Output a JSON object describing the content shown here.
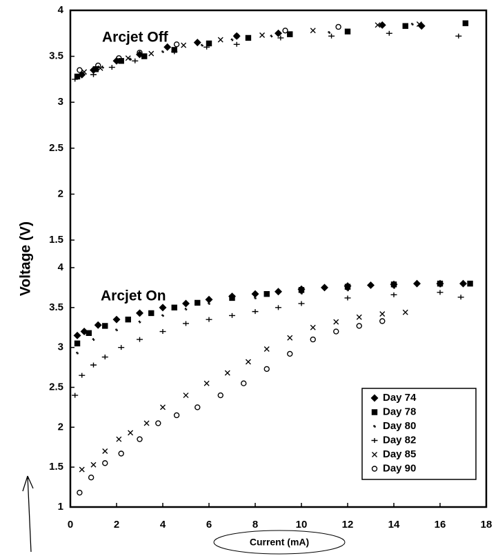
{
  "chart_data": [
    {
      "type": "scatter",
      "ylabel": "Voltage (V)",
      "annotation": "Arcjet Off",
      "xlim": [
        0,
        18
      ],
      "ylim": [
        1.2,
        4
      ],
      "yticks": [
        1.5,
        2,
        2.5,
        3,
        3.5,
        4
      ],
      "series": [
        {
          "name": "Day 74",
          "marker": "diamond",
          "color": "#000000",
          "x": [
            0.5,
            1,
            2,
            3,
            4.2,
            5.5,
            7.2,
            9,
            13.5,
            15.2
          ],
          "values": [
            3.3,
            3.35,
            3.45,
            3.52,
            3.6,
            3.65,
            3.72,
            3.75,
            3.84,
            3.83
          ]
        },
        {
          "name": "Day 78",
          "marker": "square",
          "color": "#000000",
          "x": [
            0.3,
            1.1,
            2.2,
            3.2,
            4.5,
            6,
            7.7,
            9.5,
            12,
            14.5,
            17.1
          ],
          "values": [
            3.28,
            3.36,
            3.45,
            3.5,
            3.57,
            3.64,
            3.7,
            3.74,
            3.77,
            3.83,
            3.86
          ]
        },
        {
          "name": "Day 80",
          "marker": "star",
          "color": "#000000",
          "x": [
            0.4,
            1.4,
            2.6,
            4,
            5.7,
            7,
            8.7,
            11.2,
            14.8
          ],
          "values": [
            3.3,
            3.38,
            3.47,
            3.55,
            3.62,
            3.68,
            3.72,
            3.76,
            3.85
          ]
        },
        {
          "name": "Day 82",
          "marker": "plus",
          "color": "#000000",
          "x": [
            0.2,
            1,
            1.8,
            2.8,
            4.5,
            5.9,
            7.2,
            9.1,
            11.3,
            13.8,
            16.8
          ],
          "values": [
            3.25,
            3.3,
            3.38,
            3.45,
            3.55,
            3.6,
            3.63,
            3.7,
            3.72,
            3.75,
            3.72
          ]
        },
        {
          "name": "Day 85",
          "marker": "x",
          "color": "#000000",
          "x": [
            0.6,
            1.3,
            2.5,
            3.5,
            4.9,
            6.5,
            8.3,
            10.5,
            13.3,
            15.1
          ],
          "values": [
            3.33,
            3.37,
            3.48,
            3.53,
            3.62,
            3.68,
            3.73,
            3.78,
            3.84,
            3.85
          ]
        },
        {
          "name": "Day 90",
          "marker": "circle",
          "color": "#000000",
          "x": [
            0.4,
            1.2,
            2.1,
            3,
            4.6,
            7.2,
            9.3,
            11.6
          ],
          "values": [
            3.35,
            3.4,
            3.48,
            3.54,
            3.63,
            3.72,
            3.78,
            3.82
          ]
        }
      ]
    },
    {
      "type": "scatter",
      "xlabel": "Current (mA)",
      "annotation": "Arcjet On",
      "legend": "lower right",
      "xlim": [
        0,
        18
      ],
      "xticks": [
        0,
        2,
        4,
        6,
        8,
        10,
        12,
        14,
        16,
        18
      ],
      "ylim": [
        1,
        4
      ],
      "yticks": [
        1,
        1.5,
        2,
        2.5,
        3,
        3.5,
        4
      ],
      "series": [
        {
          "name": "Day 74",
          "marker": "diamond",
          "color": "#000000",
          "x": [
            0.3,
            0.6,
            1.2,
            2,
            3,
            4,
            5,
            6,
            7,
            8,
            9,
            10,
            11,
            12,
            13,
            14,
            15,
            16,
            17
          ],
          "values": [
            3.15,
            3.2,
            3.28,
            3.35,
            3.43,
            3.5,
            3.55,
            3.6,
            3.64,
            3.67,
            3.7,
            3.73,
            3.75,
            3.77,
            3.78,
            3.79,
            3.8,
            3.8,
            3.8
          ]
        },
        {
          "name": "Day 78",
          "marker": "square",
          "color": "#000000",
          "x": [
            0.3,
            0.8,
            1.5,
            2.5,
            3.5,
            4.5,
            5.5,
            7,
            8.5,
            10,
            12,
            14,
            16,
            17.3
          ],
          "values": [
            3.05,
            3.18,
            3.27,
            3.35,
            3.43,
            3.5,
            3.56,
            3.62,
            3.67,
            3.72,
            3.76,
            3.79,
            3.8,
            3.8
          ]
        },
        {
          "name": "Day 80",
          "marker": "star",
          "color": "#000000",
          "x": [
            0.3,
            1,
            2,
            3,
            4,
            5,
            6,
            8,
            10,
            12,
            14,
            16
          ],
          "values": [
            2.93,
            3.1,
            3.22,
            3.32,
            3.4,
            3.48,
            3.55,
            3.62,
            3.68,
            3.72,
            3.75,
            3.77
          ]
        },
        {
          "name": "Day 82",
          "marker": "plus",
          "color": "#000000",
          "x": [
            0.2,
            0.5,
            1,
            1.5,
            2.2,
            3,
            4,
            5,
            6,
            7,
            8,
            9,
            10,
            12,
            14,
            16,
            16.9
          ],
          "values": [
            2.4,
            2.65,
            2.78,
            2.88,
            3.0,
            3.1,
            3.2,
            3.3,
            3.35,
            3.4,
            3.45,
            3.5,
            3.55,
            3.62,
            3.66,
            3.69,
            3.63
          ]
        },
        {
          "name": "Day 85",
          "marker": "x",
          "color": "#000000",
          "x": [
            0.5,
            1,
            1.5,
            2.1,
            2.6,
            3.3,
            4,
            5,
            5.9,
            6.8,
            7.7,
            8.5,
            9.5,
            10.5,
            11.5,
            12.5,
            13.5,
            14.5
          ],
          "values": [
            1.47,
            1.53,
            1.7,
            1.85,
            1.93,
            2.05,
            2.25,
            2.4,
            2.55,
            2.68,
            2.82,
            2.98,
            3.12,
            3.25,
            3.32,
            3.38,
            3.42,
            3.44
          ]
        },
        {
          "name": "Day 90",
          "marker": "circle",
          "color": "#000000",
          "x": [
            0.4,
            0.9,
            1.5,
            2.2,
            3,
            3.8,
            4.6,
            5.5,
            6.5,
            7.5,
            8.5,
            9.5,
            10.5,
            11.5,
            12.5,
            13.5
          ],
          "values": [
            1.18,
            1.37,
            1.55,
            1.67,
            1.85,
            2.05,
            2.15,
            2.25,
            2.4,
            2.55,
            2.73,
            2.92,
            3.1,
            3.2,
            3.27,
            3.33
          ]
        }
      ]
    }
  ]
}
